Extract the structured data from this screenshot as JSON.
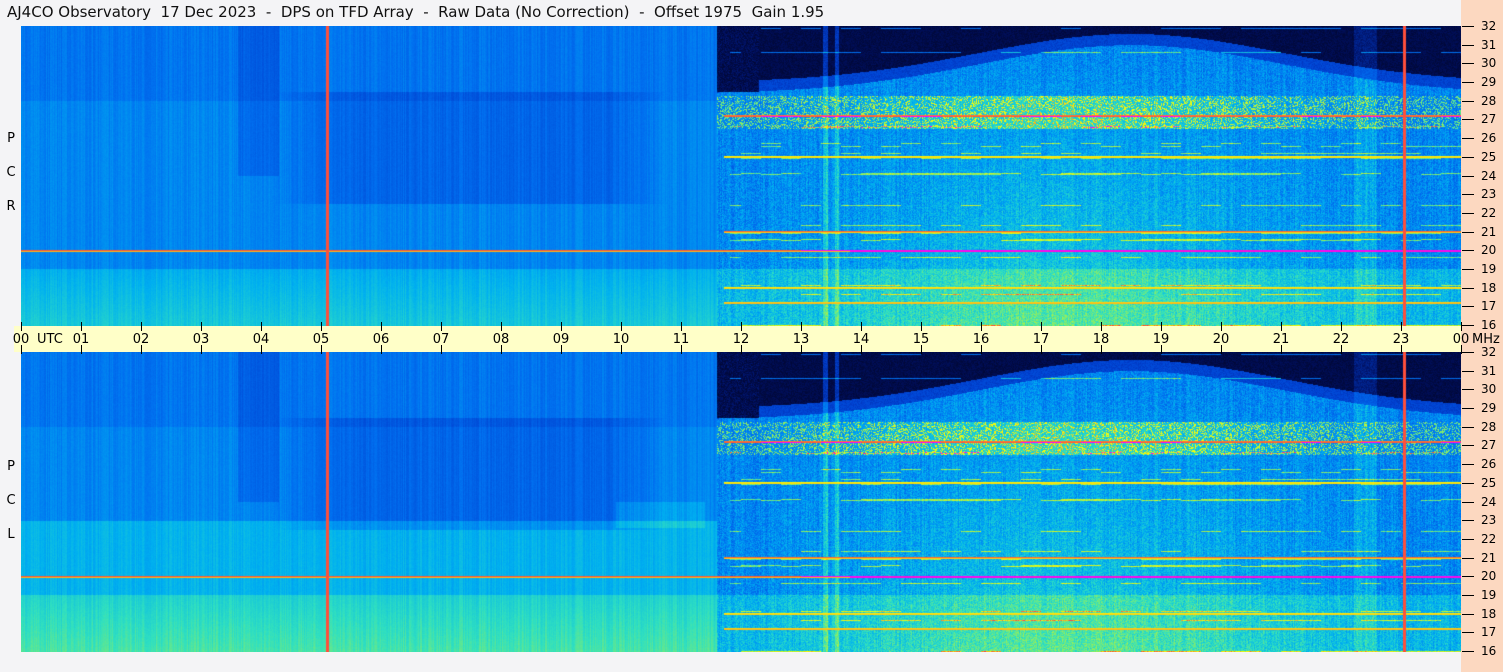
{
  "title": "AJ4CO Observatory  17 Dec 2023  -  DPS on TFD Array  -  Raw Data (No Correction)  -  Offset 1975  Gain 1.95",
  "chart_data": {
    "type": "heatmap",
    "title": "AJ4CO Observatory  17 Dec 2023  -  DPS on TFD Array  -  Raw Data (No Correction)  -  Offset 1975  Gain 1.95",
    "xlabel": "UTC",
    "ylabel": "MHz",
    "xlim": [
      0,
      24
    ],
    "ylim": [
      16,
      32
    ],
    "x_ticks": [
      "00",
      "01",
      "02",
      "03",
      "04",
      "05",
      "06",
      "07",
      "08",
      "09",
      "10",
      "11",
      "12",
      "13",
      "14",
      "15",
      "16",
      "17",
      "18",
      "19",
      "20",
      "21",
      "22",
      "23",
      "00"
    ],
    "y_ticks": [
      "16",
      "17",
      "18",
      "19",
      "20",
      "21",
      "22",
      "23",
      "24",
      "25",
      "26",
      "27",
      "28",
      "29",
      "30",
      "31",
      "32"
    ],
    "panels": [
      {
        "name": "R C P",
        "letters": [
          "P",
          "C",
          "R"
        ]
      },
      {
        "name": "L C P",
        "letters": [
          "P",
          "C",
          "L"
        ]
      }
    ],
    "colormap": [
      "#000010",
      "#001060",
      "#0040d0",
      "#0070f0",
      "#00b0f0",
      "#30e0c0",
      "#a0f050",
      "#ffff00",
      "#ff4040",
      "#ff00ff"
    ],
    "marker_lines_utc": [
      5.1,
      23.05
    ],
    "persistent_bands_mhz": [
      27.2,
      25,
      21,
      20,
      18,
      17.2
    ],
    "night_start_utc": 11.6
  }
}
